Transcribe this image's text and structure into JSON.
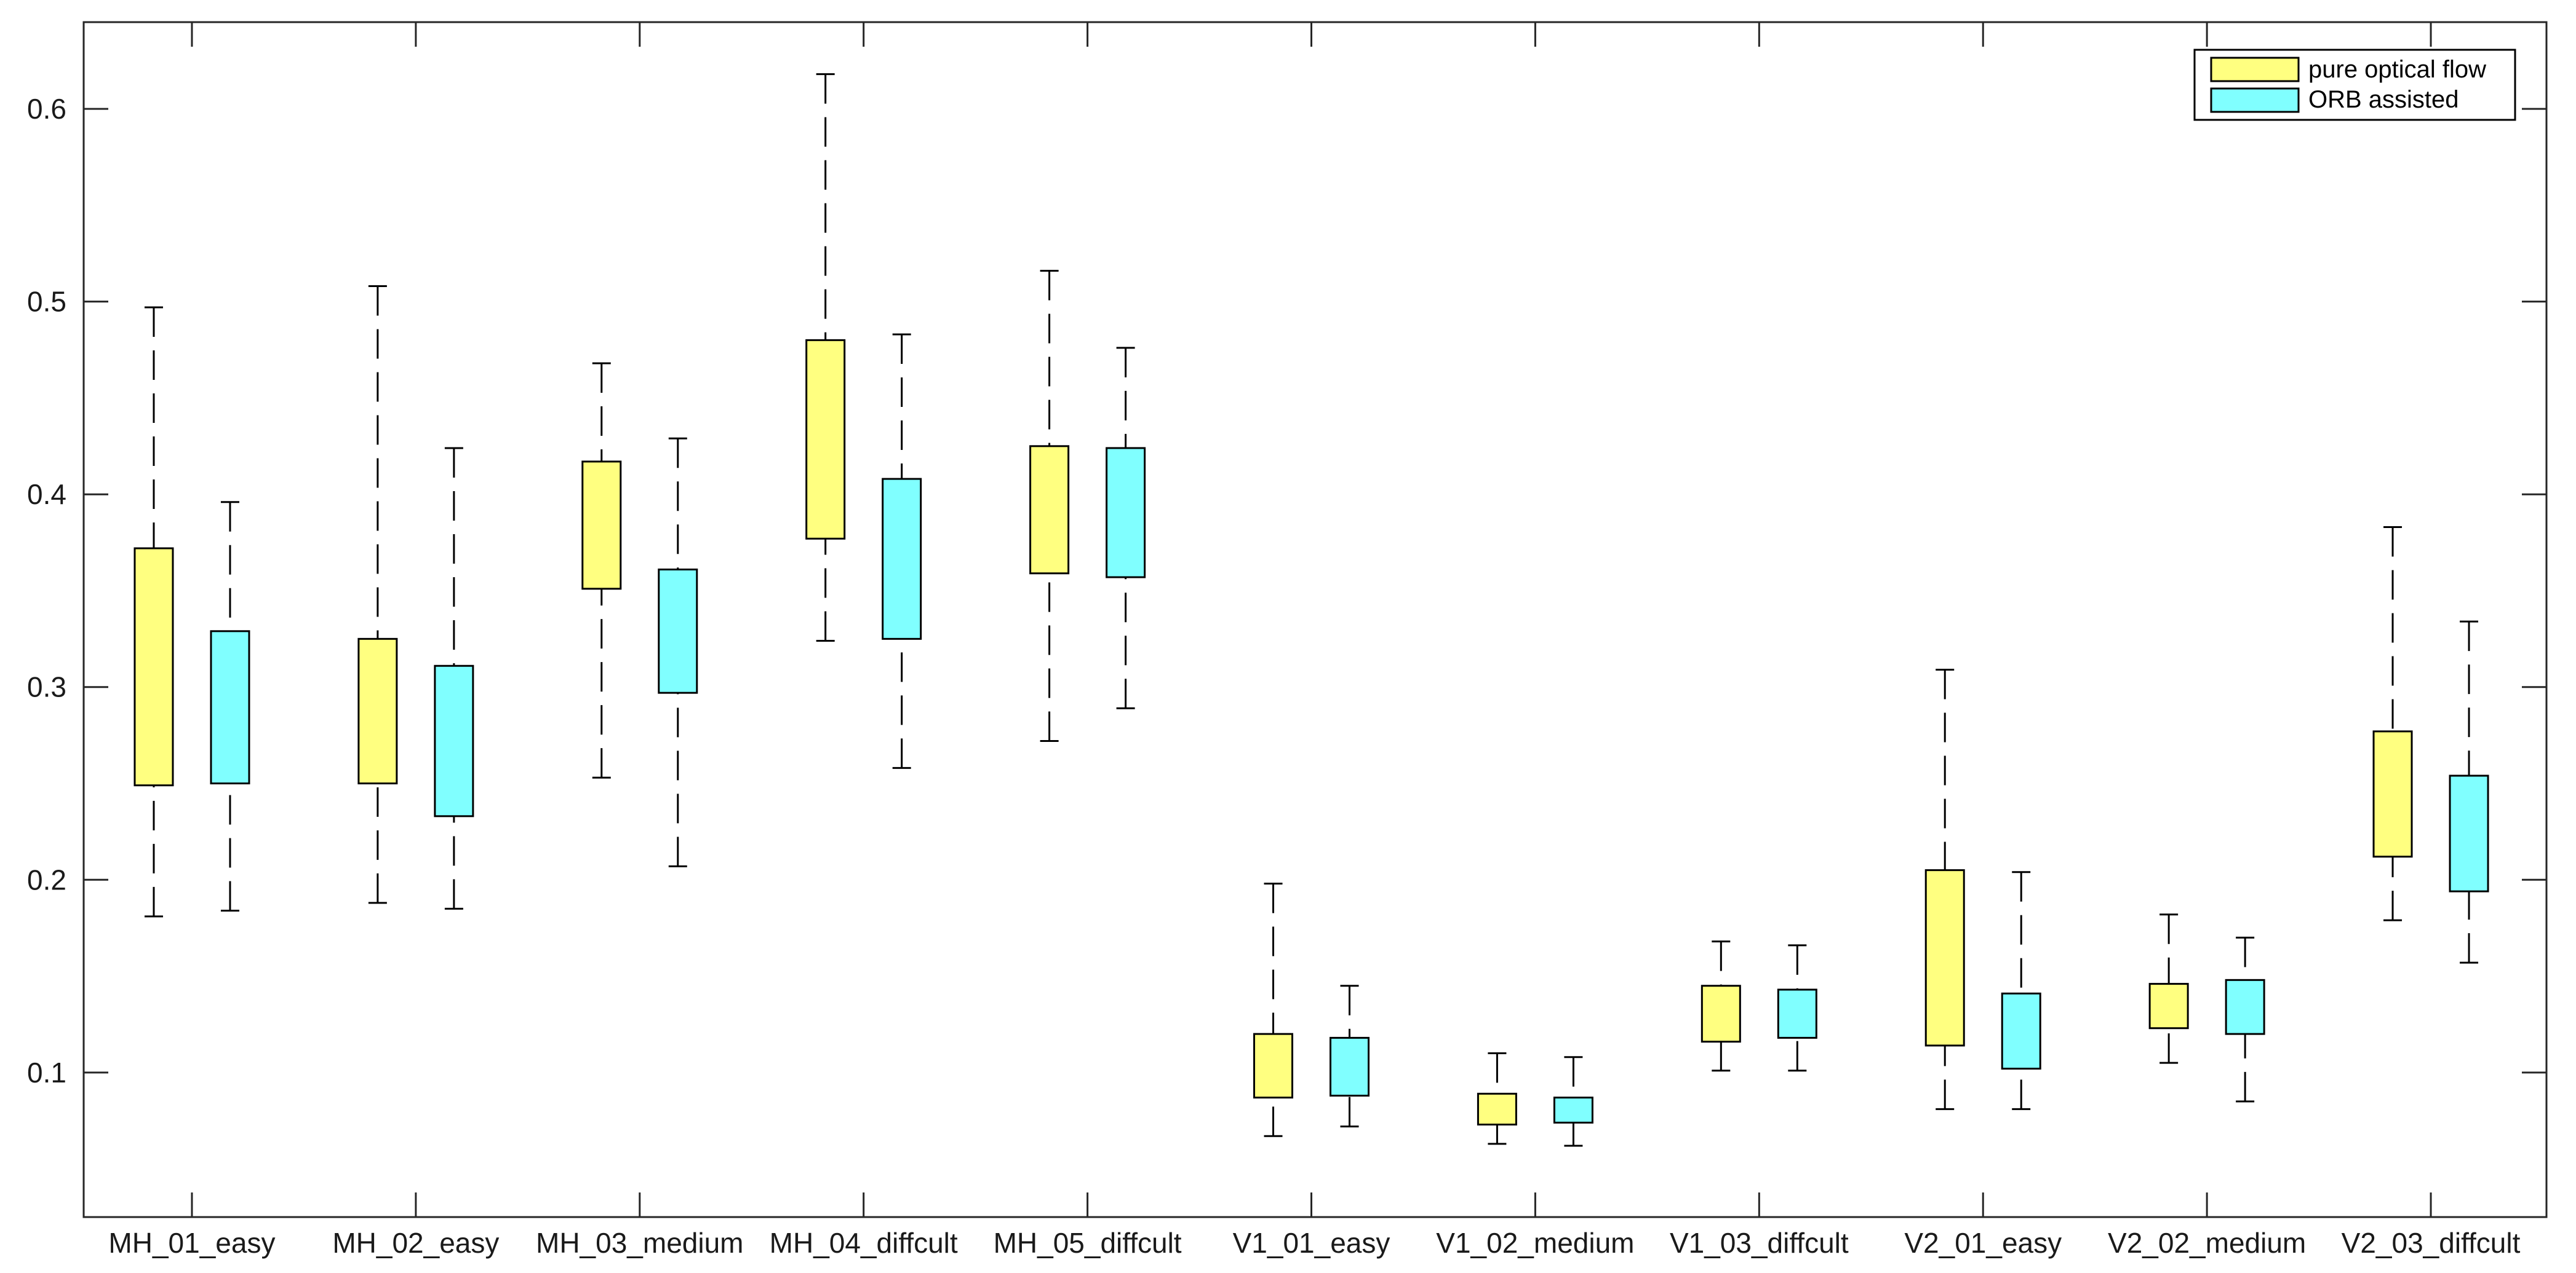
{
  "chart_data": {
    "type": "box",
    "categories": [
      "MH_01_easy",
      "MH_02_easy",
      "MH_03_medium",
      "MH_04_diffcult",
      "MH_05_diffcult",
      "V1_01_easy",
      "V1_02_medium",
      "V1_03_diffcult",
      "V2_01_easy",
      "V2_02_medium",
      "V2_03_diffcult"
    ],
    "ylim": [
      0.025,
      0.645
    ],
    "yticks": [
      0.1,
      0.2,
      0.3,
      0.4,
      0.5,
      0.6
    ],
    "ytick_labels": [
      "0.1",
      "0.2",
      "0.3",
      "0.4",
      "0.5",
      "0.6"
    ],
    "legend": {
      "position": "top-right"
    },
    "series": [
      {
        "name": "pure optical flow",
        "color": "#ffff80",
        "stats": [
          {
            "min": 0.181,
            "q1": 0.249,
            "q3": 0.372,
            "max": 0.497
          },
          {
            "min": 0.188,
            "q1": 0.25,
            "q3": 0.325,
            "max": 0.508
          },
          {
            "min": 0.253,
            "q1": 0.351,
            "q3": 0.417,
            "max": 0.468
          },
          {
            "min": 0.324,
            "q1": 0.377,
            "q3": 0.48,
            "max": 0.618
          },
          {
            "min": 0.272,
            "q1": 0.359,
            "q3": 0.425,
            "max": 0.516
          },
          {
            "min": 0.067,
            "q1": 0.087,
            "q3": 0.12,
            "max": 0.198
          },
          {
            "min": 0.063,
            "q1": 0.073,
            "q3": 0.089,
            "max": 0.11
          },
          {
            "min": 0.101,
            "q1": 0.116,
            "q3": 0.145,
            "max": 0.168
          },
          {
            "min": 0.081,
            "q1": 0.114,
            "q3": 0.205,
            "max": 0.309
          },
          {
            "min": 0.105,
            "q1": 0.123,
            "q3": 0.146,
            "max": 0.182
          },
          {
            "min": 0.179,
            "q1": 0.212,
            "q3": 0.277,
            "max": 0.383
          }
        ]
      },
      {
        "name": "ORB assisted",
        "color": "#80ffff",
        "stats": [
          {
            "min": 0.184,
            "q1": 0.25,
            "q3": 0.329,
            "max": 0.396
          },
          {
            "min": 0.185,
            "q1": 0.233,
            "q3": 0.311,
            "max": 0.424
          },
          {
            "min": 0.207,
            "q1": 0.297,
            "q3": 0.361,
            "max": 0.429
          },
          {
            "min": 0.258,
            "q1": 0.325,
            "q3": 0.408,
            "max": 0.483
          },
          {
            "min": 0.289,
            "q1": 0.357,
            "q3": 0.424,
            "max": 0.476
          },
          {
            "min": 0.072,
            "q1": 0.088,
            "q3": 0.118,
            "max": 0.145
          },
          {
            "min": 0.062,
            "q1": 0.074,
            "q3": 0.087,
            "max": 0.108
          },
          {
            "min": 0.101,
            "q1": 0.118,
            "q3": 0.143,
            "max": 0.166
          },
          {
            "min": 0.081,
            "q1": 0.102,
            "q3": 0.141,
            "max": 0.204
          },
          {
            "min": 0.085,
            "q1": 0.12,
            "q3": 0.148,
            "max": 0.17
          },
          {
            "min": 0.157,
            "q1": 0.194,
            "q3": 0.254,
            "max": 0.334
          }
        ]
      }
    ]
  }
}
